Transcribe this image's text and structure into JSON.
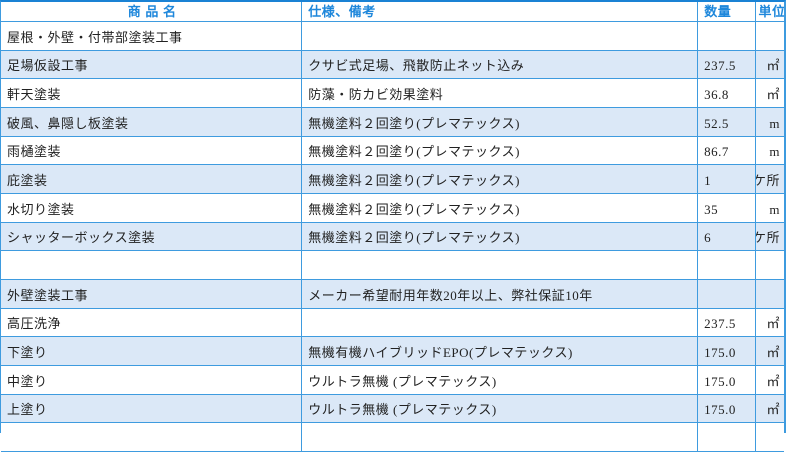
{
  "table": {
    "columns": [
      {
        "key": "name",
        "label": "商 品 名"
      },
      {
        "key": "spec",
        "label": "仕様、備考"
      },
      {
        "key": "qty",
        "label": "数量"
      },
      {
        "key": "unit",
        "label": "単位"
      }
    ],
    "rows": [
      {
        "name": "屋根・外壁・付帯部塗装工事",
        "spec": "",
        "qty": "",
        "unit": ""
      },
      {
        "name": "足場仮設工事",
        "spec": "クサビ式足場、飛散防止ネット込み",
        "qty": "237.5",
        "unit": "㎡"
      },
      {
        "name": "軒天塗装",
        "spec": "防藻・防カビ効果塗料",
        "qty": "36.8",
        "unit": "㎡"
      },
      {
        "name": "破風、鼻隠し板塗装",
        "spec": "無機塗料２回塗り(プレマテックス)",
        "qty": "52.5",
        "unit": "m"
      },
      {
        "name": "雨樋塗装",
        "spec": "無機塗料２回塗り(プレマテックス)",
        "qty": "86.7",
        "unit": "m"
      },
      {
        "name": "庇塗装",
        "spec": "無機塗料２回塗り(プレマテックス)",
        "qty": "1",
        "unit": "ケ所"
      },
      {
        "name": "水切り塗装",
        "spec": "無機塗料２回塗り(プレマテックス)",
        "qty": "35",
        "unit": "m"
      },
      {
        "name": "シャッターボックス塗装",
        "spec": "無機塗料２回塗り(プレマテックス)",
        "qty": "6",
        "unit": "ケ所"
      },
      {
        "name": "",
        "spec": "",
        "qty": "",
        "unit": ""
      },
      {
        "name": "外壁塗装工事",
        "spec": "メーカー希望耐用年数20年以上、弊社保証10年",
        "qty": "",
        "unit": ""
      },
      {
        "name": "高圧洗浄",
        "spec": "",
        "qty": "237.5",
        "unit": "㎡"
      },
      {
        "name": "下塗り",
        "spec": "無機有機ハイブリッドEPO(プレマテックス)",
        "qty": "175.0",
        "unit": "㎡"
      },
      {
        "name": "中塗り",
        "spec": "ウルトラ無機 (プレマテックス)",
        "qty": "175.0",
        "unit": "㎡"
      },
      {
        "name": "上塗り",
        "spec": "ウルトラ無機 (プレマテックス)",
        "qty": "175.0",
        "unit": "㎡"
      },
      {
        "name": "",
        "spec": "",
        "qty": "",
        "unit": ""
      }
    ],
    "colors": {
      "border": "#3e9bdf",
      "border_top": "#1a82d4",
      "stripe": "#dbe8f7",
      "header_text": "#1e87db",
      "body_text": "#222222"
    }
  }
}
